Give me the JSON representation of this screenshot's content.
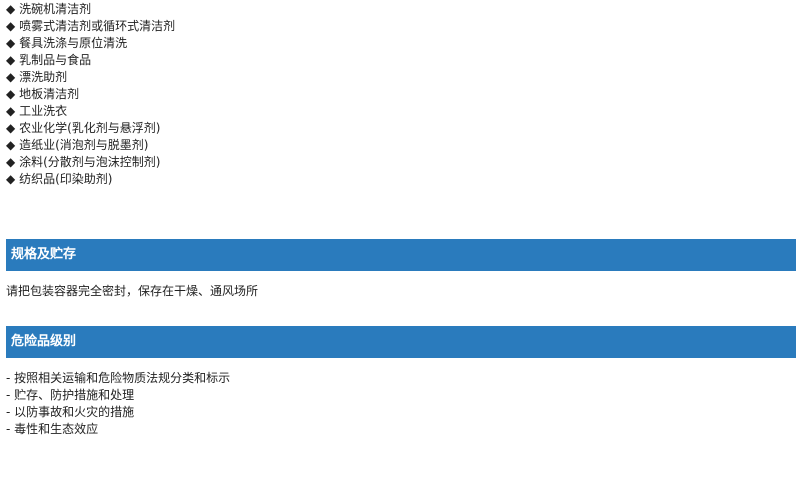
{
  "applications": {
    "bullet": "◆",
    "items": [
      "洗碗机清洁剂",
      "喷雾式清洁剂或循环式清洁剂",
      "餐具洗涤与原位清洗",
      "乳制品与食品",
      "漂洗助剂",
      "地板清洁剂",
      "工业洗衣",
      "农业化学(乳化剂与悬浮剂)",
      "造纸业(消泡剂与脱墨剂)",
      "涂料(分散剂与泡沫控制剂)",
      "纺织品(印染助剂)"
    ]
  },
  "storage": {
    "title": "规格及贮存",
    "text": "请把包装容器完全密封，保存在干燥、通风场所"
  },
  "hazard": {
    "title": "危险品级别",
    "items": [
      "- 按照相关运输和危险物质法规分类和标示",
      "- 贮存、防护措施和处理",
      "- 以防事故和火灾的措施",
      "- 毒性和生态效应"
    ]
  },
  "colors": {
    "header_bar": "#2a7bbd"
  }
}
